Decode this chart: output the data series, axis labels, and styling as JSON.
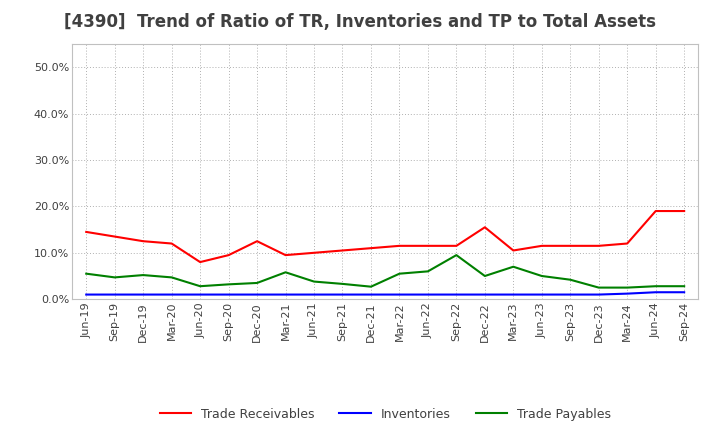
{
  "title": "[4390]  Trend of Ratio of TR, Inventories and TP to Total Assets",
  "labels": [
    "Jun-19",
    "Sep-19",
    "Dec-19",
    "Mar-20",
    "Jun-20",
    "Sep-20",
    "Dec-20",
    "Mar-21",
    "Jun-21",
    "Sep-21",
    "Dec-21",
    "Mar-22",
    "Jun-22",
    "Sep-22",
    "Dec-22",
    "Mar-23",
    "Jun-23",
    "Sep-23",
    "Dec-23",
    "Mar-24",
    "Jun-24",
    "Sep-24"
  ],
  "trade_receivables": [
    0.145,
    0.135,
    0.125,
    0.12,
    0.08,
    0.095,
    0.125,
    0.095,
    0.1,
    0.105,
    0.11,
    0.115,
    0.115,
    0.115,
    0.155,
    0.105,
    0.115,
    0.115,
    0.115,
    0.12,
    0.19,
    0.19
  ],
  "inventories": [
    0.01,
    0.01,
    0.01,
    0.01,
    0.01,
    0.01,
    0.01,
    0.01,
    0.01,
    0.01,
    0.01,
    0.01,
    0.01,
    0.01,
    0.01,
    0.01,
    0.01,
    0.01,
    0.01,
    0.012,
    0.015,
    0.015
  ],
  "trade_payables": [
    0.055,
    0.047,
    0.052,
    0.047,
    0.028,
    0.032,
    0.035,
    0.058,
    0.038,
    0.033,
    0.027,
    0.055,
    0.06,
    0.095,
    0.05,
    0.07,
    0.05,
    0.042,
    0.025,
    0.025,
    0.028,
    0.028
  ],
  "tr_color": "#ff0000",
  "inv_color": "#0000ff",
  "tp_color": "#008000",
  "ylim": [
    0.0,
    0.55
  ],
  "yticks": [
    0.0,
    0.1,
    0.2,
    0.3,
    0.4,
    0.5
  ],
  "bg_color": "#ffffff",
  "plot_bg_color": "#ffffff",
  "grid_color": "#b0b0b0",
  "title_fontsize": 12,
  "title_color": "#404040",
  "tick_fontsize": 8,
  "legend_labels": [
    "Trade Receivables",
    "Inventories",
    "Trade Payables"
  ]
}
